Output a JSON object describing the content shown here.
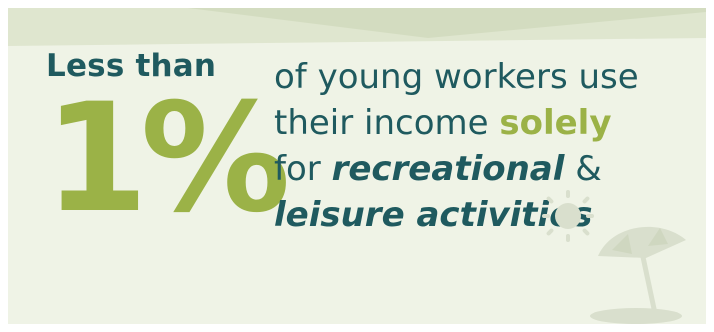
{
  "stat": {
    "lede": "Less than",
    "value": "1%"
  },
  "statement": {
    "line1": "of young workers use",
    "line2_prefix": "their income ",
    "line2_accent": "solely",
    "line3_prefix": "for ",
    "line3_emphasis": "recreational",
    "line3_suffix": " &",
    "line4_emphasis": "leisure activities"
  },
  "icons": [
    "sun-icon",
    "beach-umbrella-icon"
  ],
  "colors": {
    "background": "#eff3e6",
    "band": "#dfe6cf",
    "teal": "#1f5a5f",
    "green": "#9bb247",
    "decor": "#d9dfcd"
  }
}
